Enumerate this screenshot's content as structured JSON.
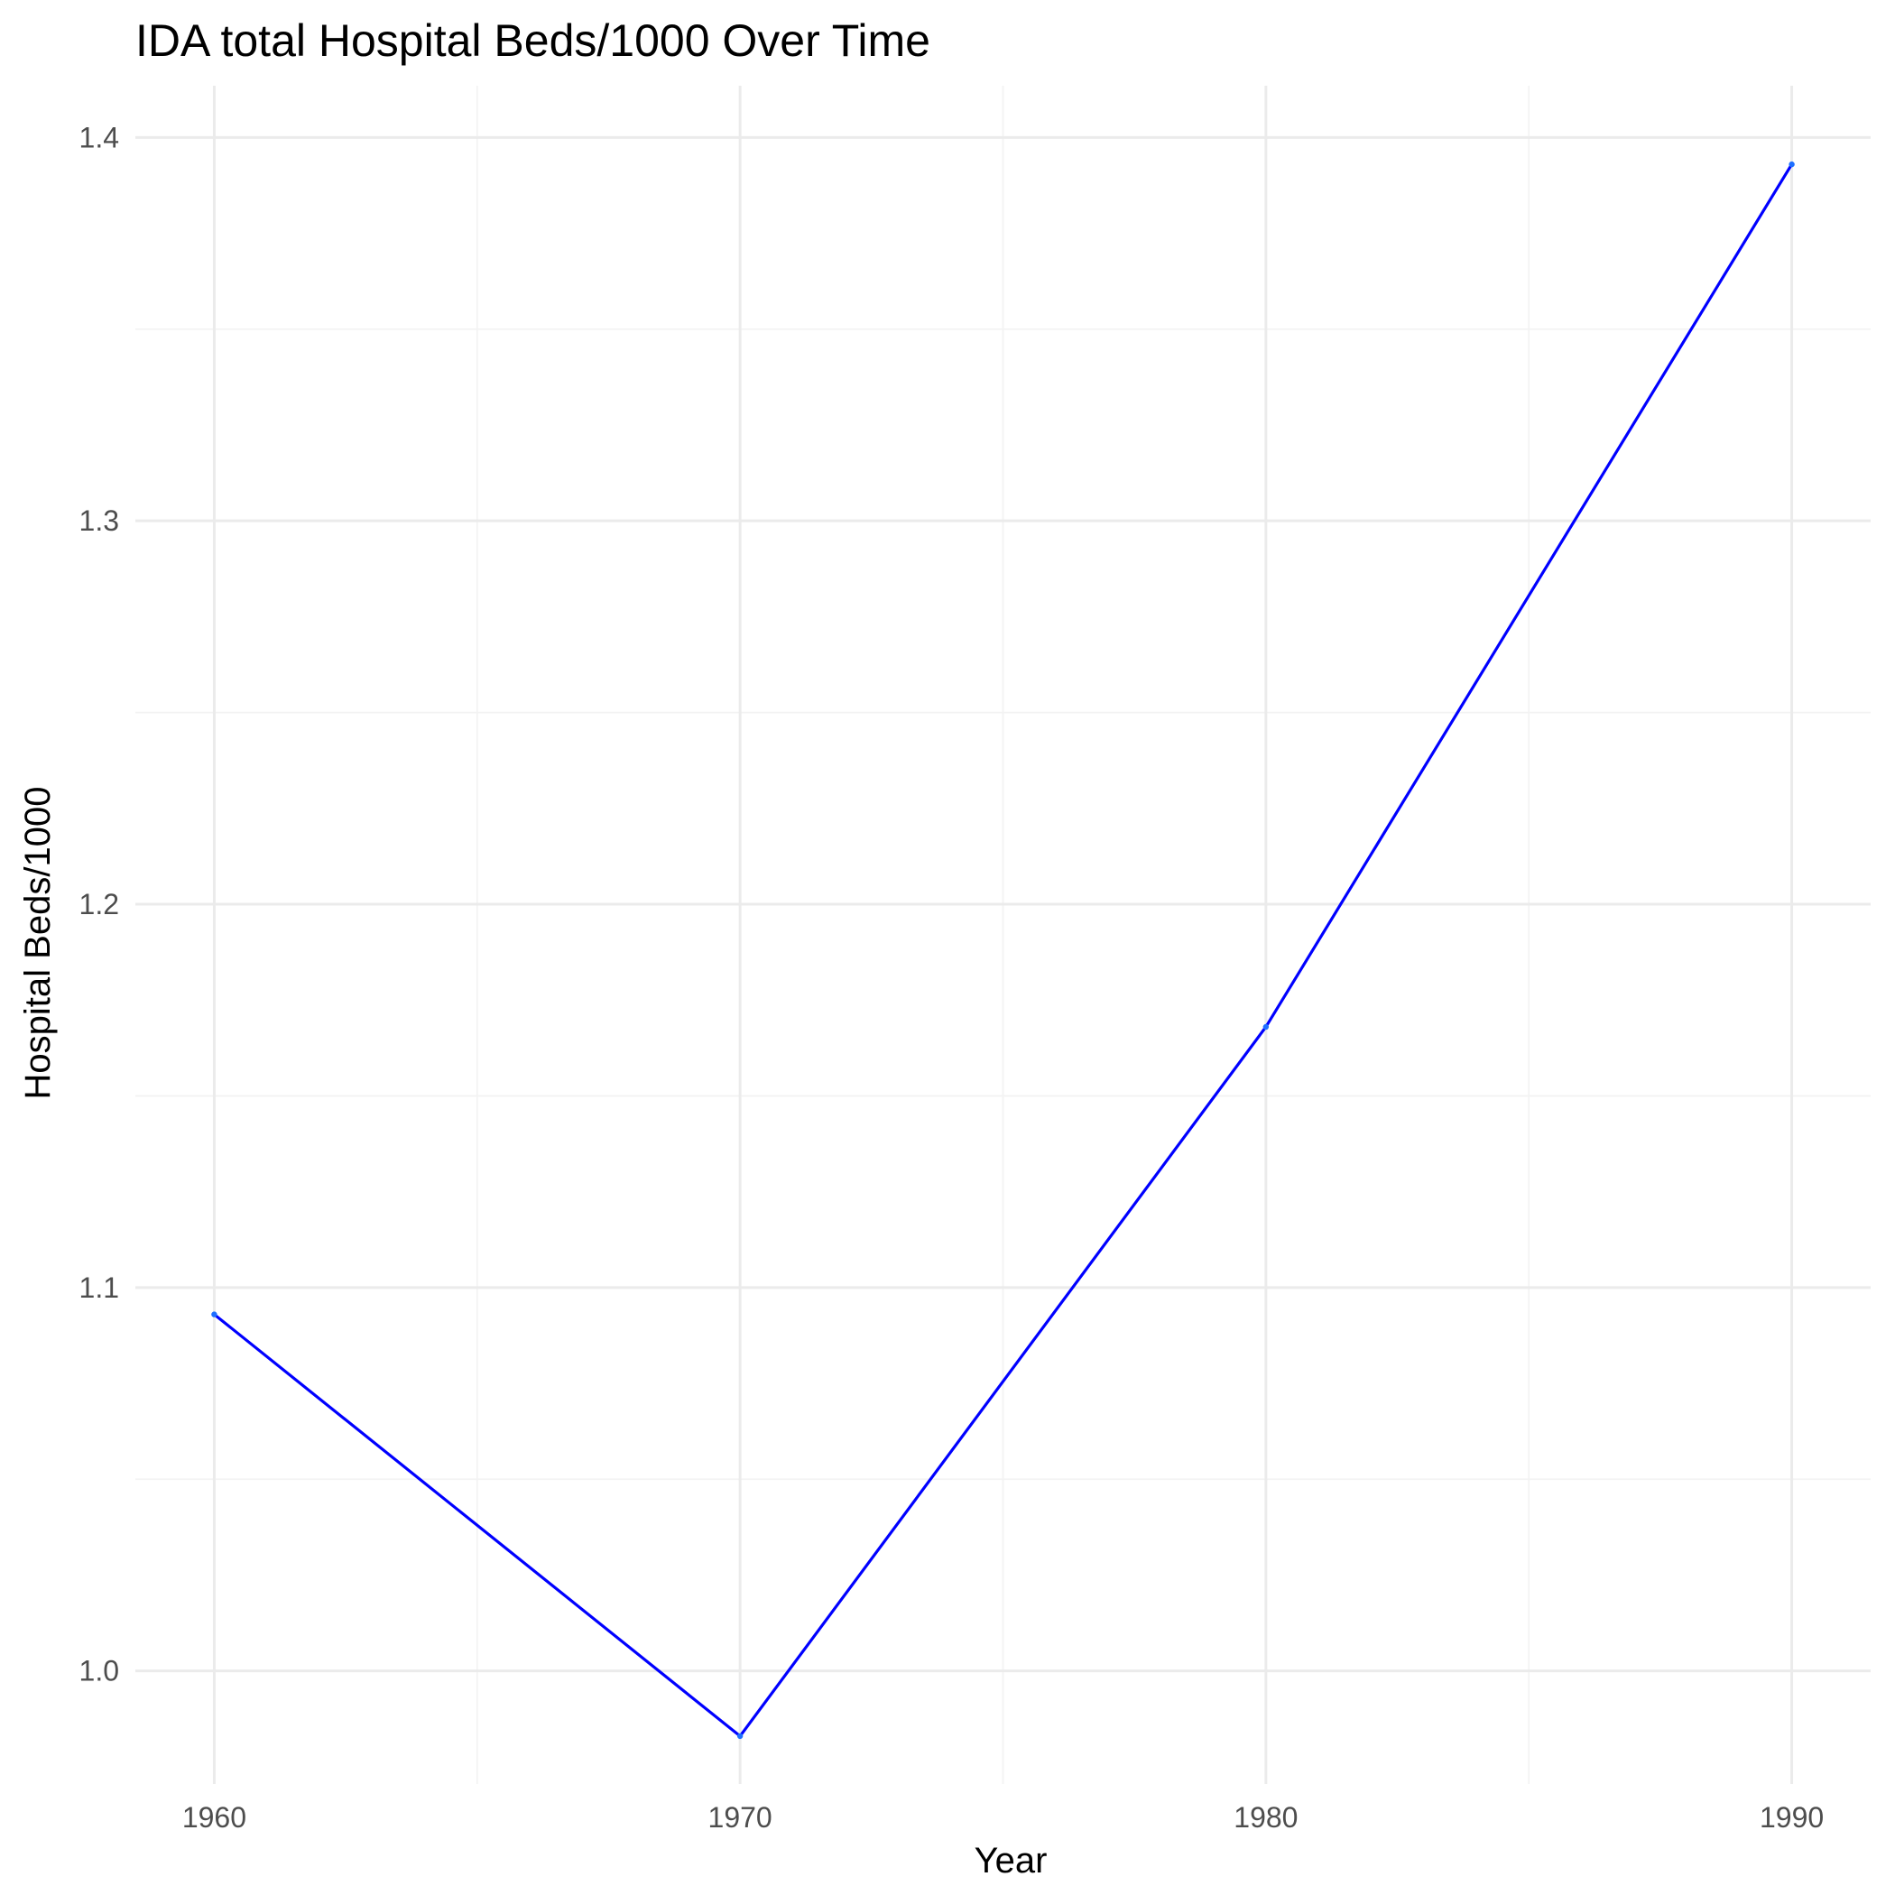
{
  "chart_data": {
    "type": "line",
    "title": "IDA total Hospital Beds/1000 Over Time",
    "xlabel": "Year",
    "ylabel": "Hospital Beds/1000",
    "x": [
      1960,
      1970,
      1980,
      1990
    ],
    "series": [
      {
        "values": [
          1.093,
          0.983,
          1.168,
          1.393
        ],
        "color": "#0000ff",
        "point_color": "#1e6fff"
      }
    ],
    "xlim": [
      1958.5,
      1991.5
    ],
    "ylim": [
      0.9705,
      1.4135
    ],
    "x_ticks": [
      1960,
      1970,
      1980,
      1990
    ],
    "x_tick_labels": [
      "1960",
      "1970",
      "1980",
      "1990"
    ],
    "x_minor_ticks": [
      1965,
      1975,
      1985
    ],
    "y_ticks": [
      1.0,
      1.1,
      1.2,
      1.3,
      1.4
    ],
    "y_tick_labels": [
      "1.0",
      "1.1",
      "1.2",
      "1.3",
      "1.4"
    ],
    "y_minor_ticks": [
      1.05,
      1.15,
      1.25,
      1.35
    ],
    "grid": true,
    "legend": "none"
  }
}
